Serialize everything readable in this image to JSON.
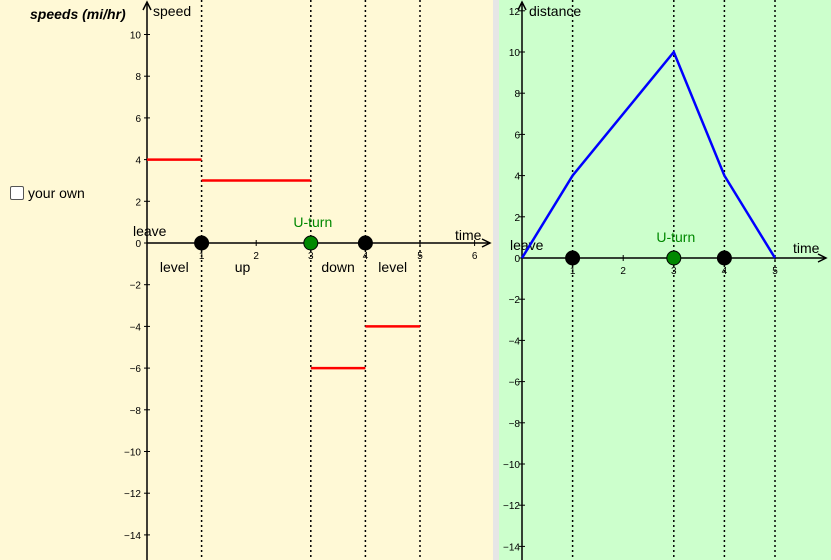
{
  "speeds_title": "speeds (mi/hr)",
  "checkbox_label": "your own",
  "chart_data": [
    {
      "type": "line",
      "ylabel": "speed",
      "xlabel": "time",
      "xlim": [
        0,
        6
      ],
      "ylim": [
        -15,
        11
      ],
      "xticks": [
        "1",
        "2",
        "3",
        "4",
        "5",
        "6"
      ],
      "yticks": [
        "10",
        "8",
        "6",
        "4",
        "2",
        "0",
        "−2",
        "−4",
        "−6",
        "−8",
        "−10",
        "−12",
        "−14"
      ],
      "series": [
        {
          "segments": [
            {
              "x": [
                0,
                1
              ],
              "y": [
                4,
                4
              ]
            },
            {
              "x": [
                1,
                3
              ],
              "y": [
                3,
                3
              ]
            },
            {
              "x": [
                3,
                4
              ],
              "y": [
                -6,
                -6
              ]
            },
            {
              "x": [
                4,
                5
              ],
              "y": [
                -4,
                -4
              ]
            }
          ],
          "color": "#ff0000"
        }
      ],
      "dashed_x": [
        1,
        3,
        4,
        5
      ],
      "points": [
        {
          "x": 1,
          "y": 0,
          "color": "#000000"
        },
        {
          "x": 3,
          "y": 0,
          "color": "#008800"
        },
        {
          "x": 4,
          "y": 0,
          "color": "#000000"
        }
      ],
      "annotations": {
        "leave": "leave",
        "u_turn": "U-turn",
        "segment_labels": [
          {
            "x": 0.5,
            "text": "level"
          },
          {
            "x": 1.75,
            "text": "up"
          },
          {
            "x": 3.5,
            "text": "down"
          },
          {
            "x": 4.5,
            "text": "level"
          }
        ]
      }
    },
    {
      "type": "line",
      "ylabel": "distance",
      "xlabel": "time",
      "xlim": [
        0,
        6
      ],
      "ylim": [
        -15,
        12
      ],
      "xticks": [
        "1",
        "2",
        "3",
        "4",
        "5"
      ],
      "yticks": [
        "12",
        "10",
        "8",
        "6",
        "4",
        "2",
        "0",
        "−2",
        "−4",
        "−6",
        "−8",
        "−10",
        "−12",
        "−14"
      ],
      "series": [
        {
          "x": [
            0,
            1,
            3,
            4,
            5
          ],
          "y": [
            0,
            4,
            10,
            4,
            0
          ],
          "color": "#0000ff"
        }
      ],
      "dashed_x": [
        1,
        3,
        4,
        5
      ],
      "points": [
        {
          "x": 1,
          "y": 0,
          "color": "#000000"
        },
        {
          "x": 3,
          "y": 0,
          "color": "#008800"
        },
        {
          "x": 4,
          "y": 0,
          "color": "#000000"
        }
      ],
      "annotations": {
        "leave": "leave",
        "u_turn": "U-turn"
      }
    }
  ]
}
